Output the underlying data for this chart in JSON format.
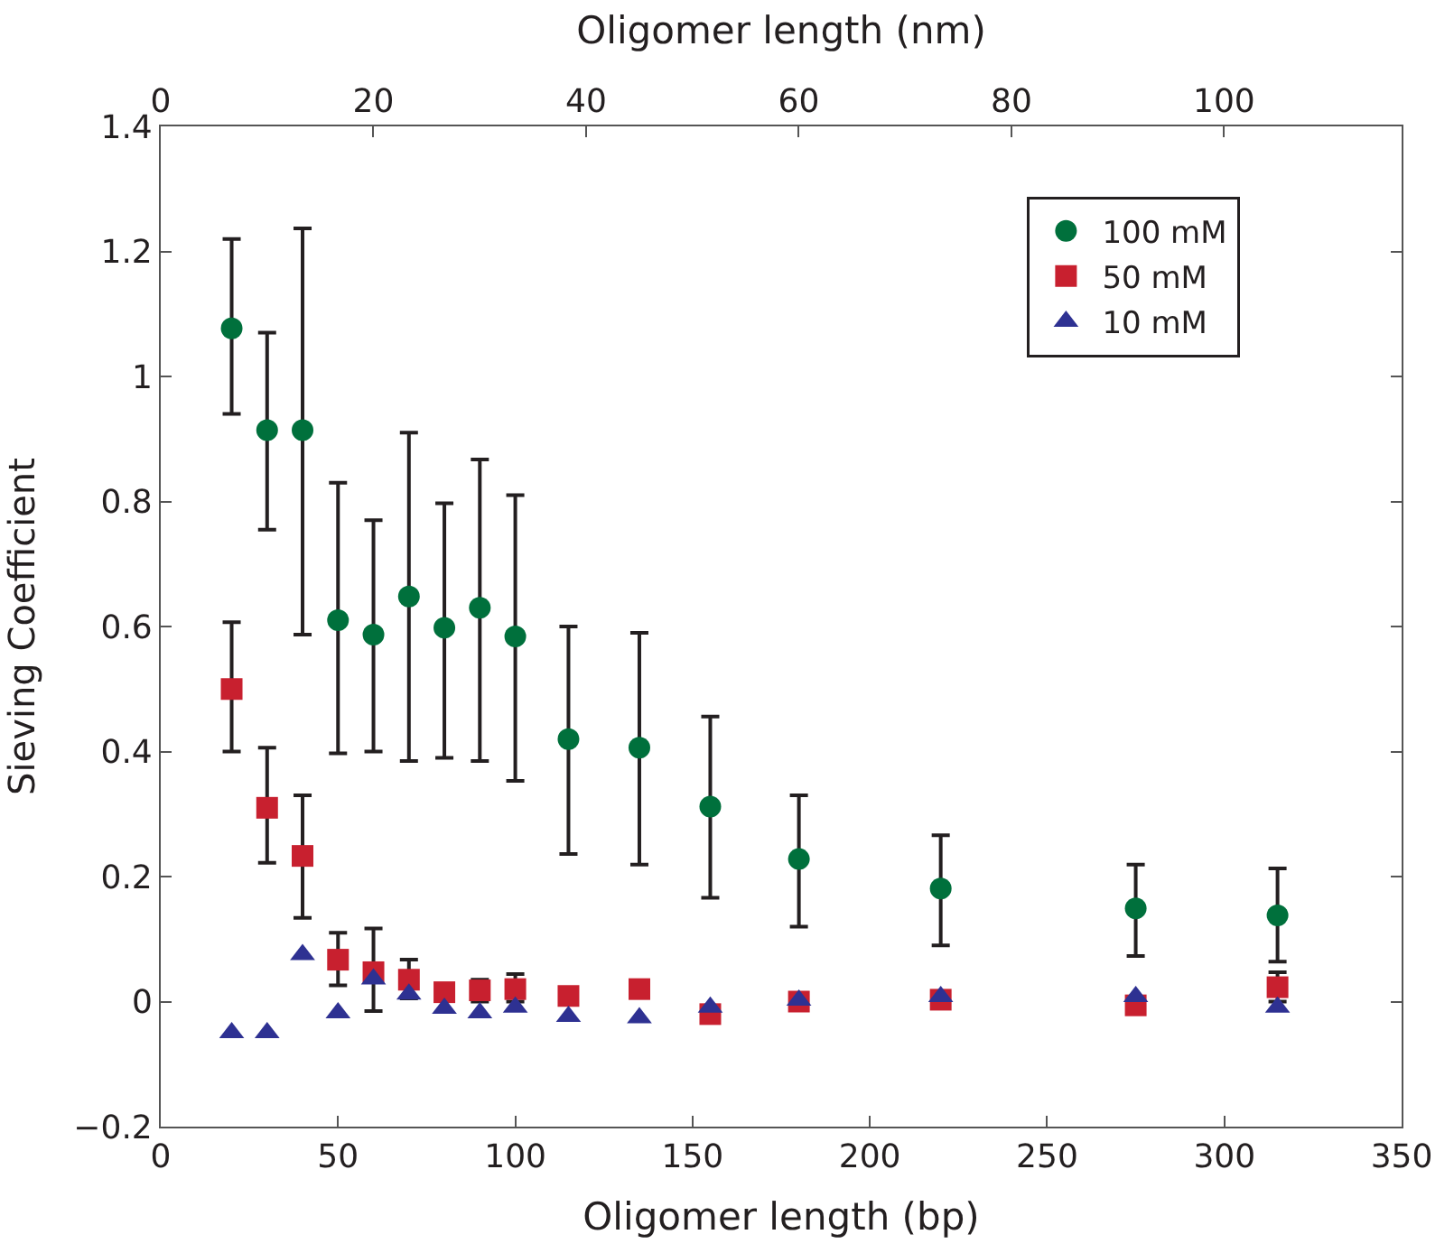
{
  "chart_data": {
    "type": "scatter",
    "xlabel": "Oligomer length (bp)",
    "ylabel": "Sieving Coefficient",
    "x2label": "Oligomer length (nm)",
    "x": [
      20,
      30,
      40,
      50,
      60,
      70,
      80,
      90,
      100,
      115,
      135,
      155,
      180,
      220,
      275,
      315
    ],
    "series": [
      {
        "name": "100 mM",
        "color": "#00703c",
        "marker": "circle",
        "values": [
          1.077,
          0.914,
          0.914,
          0.61,
          0.587,
          0.648,
          0.598,
          0.63,
          0.584,
          0.42,
          0.406,
          0.312,
          0.228,
          0.181,
          0.149,
          0.138
        ],
        "errors": [
          [
            0.94,
            1.22
          ],
          [
            0.755,
            1.07
          ],
          [
            0.587,
            1.237
          ],
          [
            0.397,
            0.83
          ],
          [
            0.4,
            0.77
          ],
          [
            0.385,
            0.91
          ],
          [
            0.39,
            0.797
          ],
          [
            0.385,
            0.867
          ],
          [
            0.353,
            0.81
          ],
          [
            0.236,
            0.6
          ],
          [
            0.219,
            0.59
          ],
          [
            0.166,
            0.456
          ],
          [
            0.12,
            0.33
          ],
          [
            0.09,
            0.266
          ],
          [
            0.073,
            0.219
          ],
          [
            0.064,
            0.213
          ]
        ]
      },
      {
        "name": "50 mM",
        "color": "#c8202f",
        "marker": "square",
        "values": [
          0.5,
          0.31,
          0.233,
          0.067,
          0.047,
          0.035,
          0.015,
          0.018,
          0.02,
          0.009,
          0.02,
          -0.02,
          0.0,
          0.003,
          -0.006,
          0.023
        ],
        "errors": [
          [
            0.4,
            0.607
          ],
          [
            0.222,
            0.406
          ],
          [
            0.134,
            0.33
          ],
          [
            0.026,
            0.11
          ],
          [
            -0.015,
            0.117
          ],
          [
            0.005,
            0.067
          ],
          null,
          [
            0.0,
            0.035
          ],
          [
            0.0,
            0.044
          ],
          null,
          null,
          null,
          null,
          null,
          null,
          [
            0.0,
            0.047
          ]
        ]
      },
      {
        "name": "10 mM",
        "color": "#2e3192",
        "marker": "triangle",
        "values": [
          -0.05,
          -0.05,
          0.075,
          -0.018,
          0.036,
          0.012,
          -0.011,
          -0.018,
          -0.009,
          -0.024,
          -0.026,
          -0.009,
          0.002,
          0.008,
          0.008,
          -0.009
        ]
      }
    ],
    "xlim": [
      0,
      350
    ],
    "xticks": [
      0,
      50,
      100,
      150,
      200,
      250,
      300,
      350
    ],
    "x2lim": [
      0,
      116.7
    ],
    "x2ticks": [
      0,
      20,
      40,
      60,
      80,
      100
    ],
    "ylim": [
      -0.2,
      1.4
    ],
    "yticks": [
      {
        "value": -0.2,
        "label": "−0.2"
      },
      0,
      0.2,
      0.4,
      0.6,
      0.8,
      1,
      1.2,
      1.4
    ],
    "legend": "top right"
  }
}
